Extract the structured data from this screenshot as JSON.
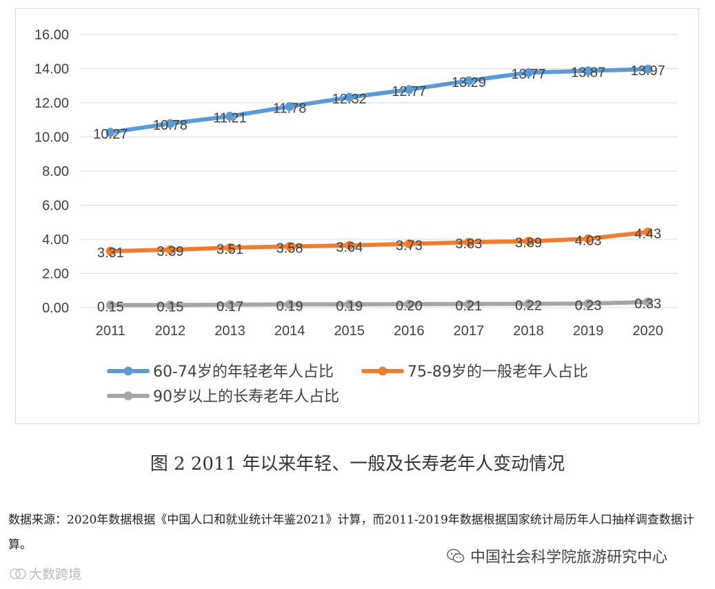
{
  "chart_data": {
    "type": "line",
    "categories": [
      "2011",
      "2012",
      "2013",
      "2014",
      "2015",
      "2016",
      "2017",
      "2018",
      "2019",
      "2020"
    ],
    "ylim": [
      0,
      16
    ],
    "yticks": [
      "0.00",
      "2.00",
      "4.00",
      "6.00",
      "8.00",
      "10.00",
      "12.00",
      "14.00",
      "16.00"
    ],
    "grid": true,
    "legend_position": "bottom",
    "series": [
      {
        "name": "60-74岁的年轻老年人占比",
        "color": "#5b9bd5",
        "values": [
          10.27,
          10.78,
          11.21,
          11.78,
          12.32,
          12.77,
          13.29,
          13.77,
          13.87,
          13.97
        ],
        "labels": [
          "10.27",
          "10.78",
          "11.21",
          "11.78",
          "12.32",
          "12.77",
          "13.29",
          "13.77",
          "13.87",
          "13.97"
        ]
      },
      {
        "name": "75-89岁的一般老年人占比",
        "color": "#ed7d31",
        "values": [
          3.31,
          3.39,
          3.51,
          3.58,
          3.64,
          3.73,
          3.83,
          3.89,
          4.03,
          4.43
        ],
        "labels": [
          "3.31",
          "3.39",
          "3.51",
          "3.58",
          "3.64",
          "3.73",
          "3.83",
          "3.89",
          "4.03",
          "4.43"
        ]
      },
      {
        "name": "90岁以上的长寿老年人占比",
        "color": "#a5a5a5",
        "values": [
          0.15,
          0.15,
          0.17,
          0.19,
          0.19,
          0.2,
          0.21,
          0.22,
          0.23,
          0.33
        ],
        "labels": [
          "0.15",
          "0.15",
          "0.17",
          "0.19",
          "0.19",
          "0.20",
          "0.21",
          "0.22",
          "0.23",
          "0.33"
        ]
      }
    ]
  },
  "caption": "图 2 2011 年以来年轻、一般及长寿老年人变动情况",
  "source_note": "数据来源：2020年数据根据《中国人口和就业统计年鉴2021》计算，而2011-2019年数据根据国家统计局历年人口抽样调查数据计算。",
  "credit": "中国社会科学院旅游研究中心",
  "watermark": "大数跨境"
}
